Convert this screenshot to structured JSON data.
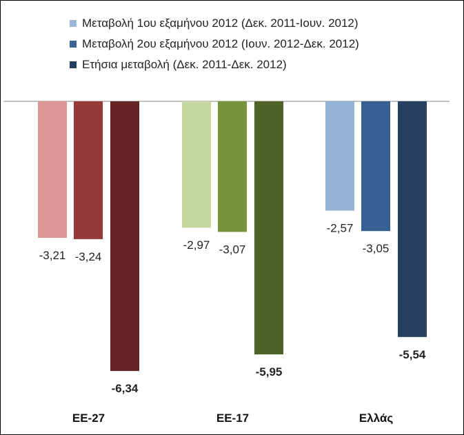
{
  "chart_data": {
    "type": "bar",
    "title": "",
    "xlabel": "",
    "ylabel": "",
    "ylim": [
      -7.2,
      0.35
    ],
    "grid": false,
    "legend_position": "top",
    "categories": [
      "ΕΕ-27",
      "ΕΕ-17",
      "Ελλάς"
    ],
    "series": [
      {
        "name": "Μεταβολή 1ου εξαμήνου 2012 (Δεκ. 2011-Ιουν. 2012)",
        "values": [
          -3.21,
          -2.97,
          -2.57
        ],
        "labels": [
          "-3,21",
          "-2,97",
          "-2,57"
        ]
      },
      {
        "name": "Μεταβολή 2ου εξαμήνου 2012 (Ιουν.  2012-Δεκ. 2012)",
        "values": [
          -3.24,
          -3.07,
          -3.05
        ],
        "labels": [
          "-3,24",
          "-3,07",
          "-3,05"
        ]
      },
      {
        "name": "Ετήσια μεταβολή (Δεκ. 2011-Δεκ. 2012)",
        "values": [
          -6.34,
          -5.95,
          -5.54
        ],
        "labels": [
          "-6,34",
          "-5,95",
          "-5,54"
        ]
      }
    ],
    "legend_colors": [
      "#9ab6d8",
      "#3a6398",
      "#243e62"
    ],
    "bar_colors": [
      [
        "#da9695",
        "#973a3a",
        "#642324"
      ],
      [
        "#c5d79e",
        "#77933c",
        "#4f6228"
      ],
      [
        "#95b3d7",
        "#366092",
        "#243f60"
      ]
    ]
  }
}
